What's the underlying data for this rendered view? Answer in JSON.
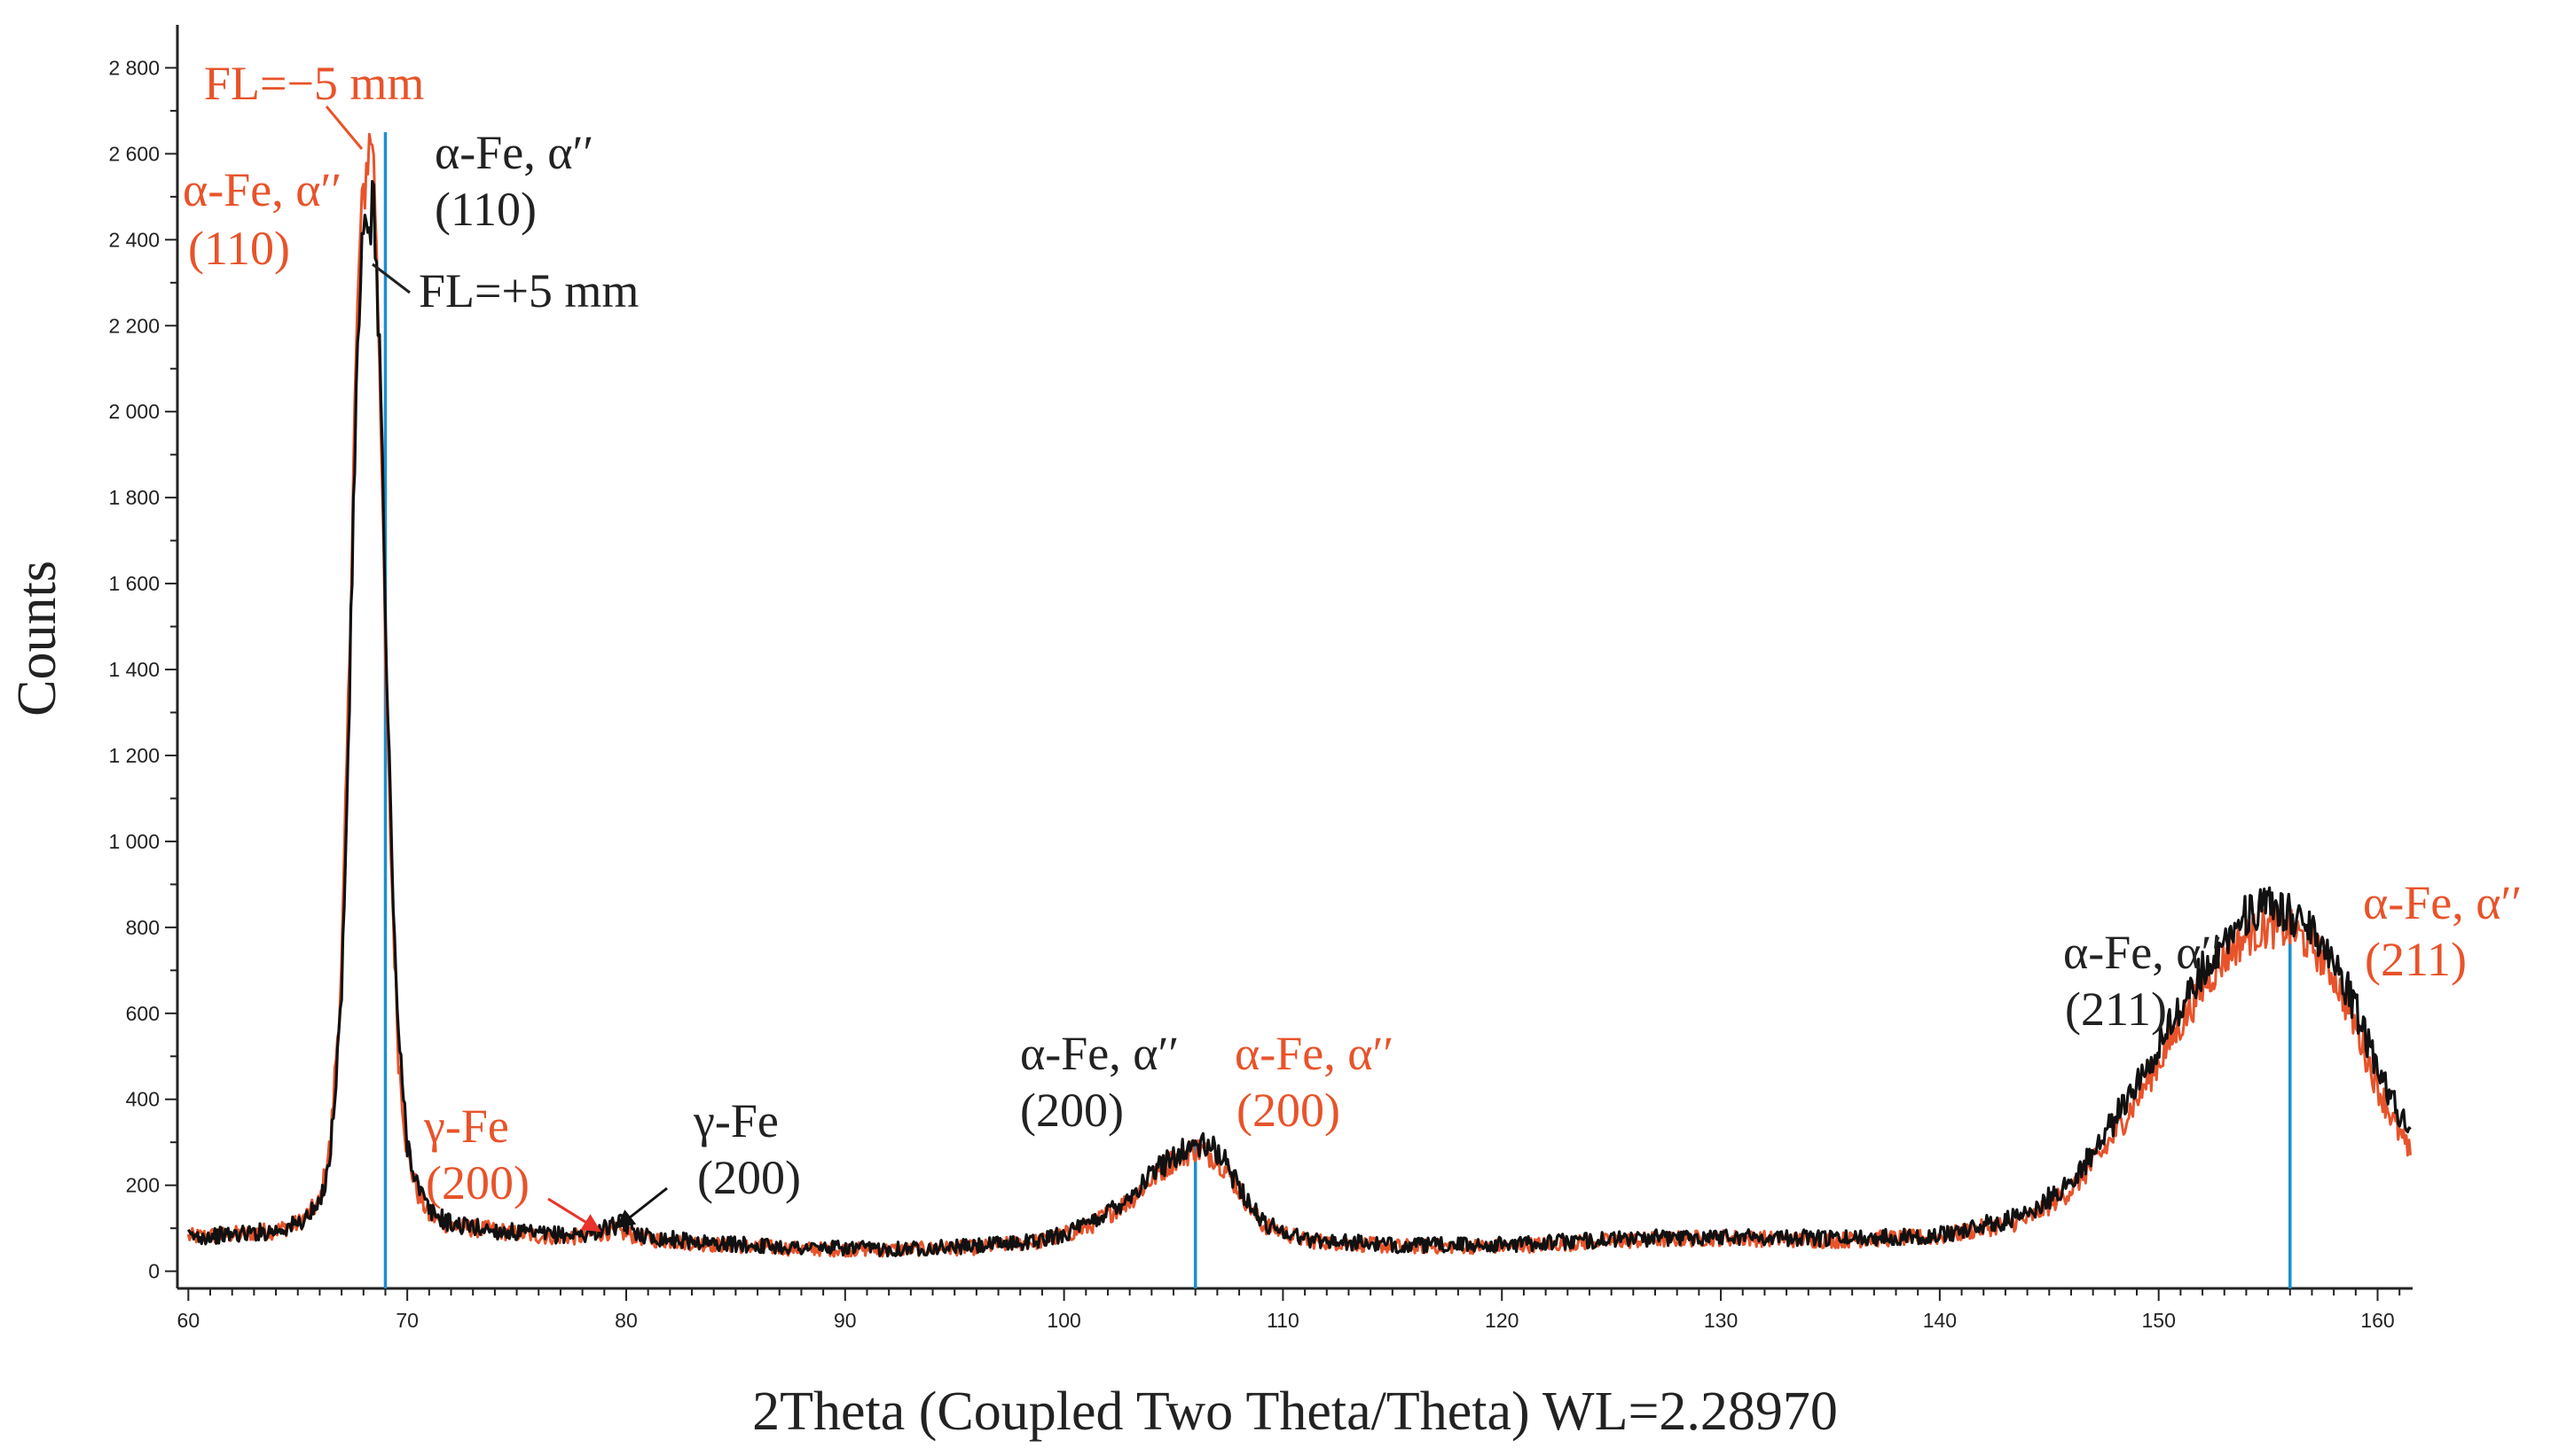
{
  "chart_data": {
    "type": "line",
    "title": "",
    "xlabel": "2Theta (Coupled Two Theta/Theta) WL=2.28970",
    "ylabel": "Counts",
    "xlim": [
      59.5,
      161.6
    ],
    "ylim": [
      -40,
      2900
    ],
    "x_ticks": [
      60,
      70,
      80,
      90,
      100,
      110,
      120,
      130,
      140,
      150,
      160
    ],
    "y_ticks": [
      0,
      200,
      400,
      600,
      800,
      1000,
      1200,
      1400,
      1600,
      1800,
      2000,
      2200,
      2400,
      2600,
      2800
    ],
    "y_tick_labels": [
      "0",
      "200",
      "400",
      "600",
      "800",
      "1 000",
      "1 200",
      "1 400",
      "1 600",
      "1 800",
      "2 000",
      "2 200",
      "2 400",
      "2 600",
      "2 800"
    ],
    "grid": false,
    "legend": "none",
    "series": [
      {
        "color": "#e8532a",
        "x": [
          60,
          62,
          64,
          65,
          66,
          66.5,
          67,
          67.3,
          67.6,
          67.8,
          68.0,
          68.2,
          68.4,
          68.6,
          68.8,
          69.0,
          69.3,
          69.6,
          70.0,
          70.5,
          71,
          72,
          74,
          76,
          78,
          79.4,
          81,
          84,
          88,
          92,
          96,
          99,
          101,
          103,
          104,
          105,
          106,
          107,
          108,
          109,
          111,
          115,
          120,
          125,
          130,
          135,
          140,
          144,
          146,
          147.5,
          149,
          150.5,
          152,
          153,
          154,
          155,
          156,
          157,
          158,
          159,
          160,
          161,
          161.5
        ],
        "y": [
          80,
          85,
          95,
          110,
          160,
          300,
          700,
          1300,
          2000,
          2350,
          2500,
          2600,
          2650,
          2400,
          2000,
          1400,
          900,
          500,
          270,
          180,
          130,
          105,
          95,
          82,
          80,
          95,
          75,
          62,
          52,
          50,
          55,
          70,
          100,
          165,
          215,
          260,
          285,
          265,
          190,
          110,
          72,
          58,
          58,
          70,
          78,
          72,
          80,
          120,
          190,
          280,
          400,
          530,
          660,
          730,
          780,
          800,
          795,
          760,
          690,
          570,
          430,
          320,
          270
        ]
      },
      {
        "color": "#111111",
        "x": [
          60,
          62,
          64,
          65,
          66,
          66.5,
          67,
          67.3,
          67.6,
          67.8,
          68.0,
          68.2,
          68.4,
          68.6,
          68.8,
          69.0,
          69.3,
          69.6,
          70.0,
          70.5,
          71,
          72,
          74,
          76,
          78,
          79.8,
          81,
          84,
          88,
          92,
          96,
          99,
          101,
          103,
          104,
          105,
          106,
          107,
          108,
          109,
          111,
          115,
          120,
          125,
          130,
          135,
          140,
          144,
          146,
          147.5,
          149,
          150.5,
          152,
          153,
          154,
          155,
          156,
          157,
          158,
          159,
          160,
          161,
          161.5
        ],
        "y": [
          80,
          85,
          95,
          110,
          150,
          280,
          640,
          1200,
          1900,
          2250,
          2420,
          2360,
          2500,
          2350,
          2050,
          1500,
          950,
          540,
          300,
          195,
          140,
          110,
          95,
          85,
          85,
          110,
          80,
          65,
          55,
          52,
          58,
          72,
          105,
          175,
          225,
          270,
          295,
          280,
          200,
          115,
          75,
          60,
          62,
          74,
          82,
          76,
          84,
          130,
          210,
          310,
          440,
          570,
          700,
          770,
          830,
          845,
          830,
          800,
          730,
          610,
          470,
          360,
          330
        ]
      }
    ],
    "reference_lines": {
      "color": "#1a8fd1",
      "x": [
        69.0,
        106.0,
        156.0
      ],
      "top": [
        2650,
        300,
        850
      ]
    },
    "annotations": [
      {
        "id": "fl-minus",
        "text": "FL=−5 mm",
        "color": "#e8532a"
      },
      {
        "id": "red-110-a",
        "text": "α-Fe, α′′",
        "color": "#e8532a"
      },
      {
        "id": "red-110-b",
        "text": "(110)",
        "color": "#e8532a"
      },
      {
        "id": "blk-110-a",
        "text": "α-Fe, α′′",
        "color": "#222222"
      },
      {
        "id": "blk-110-b",
        "text": "(110)",
        "color": "#222222"
      },
      {
        "id": "fl-plus",
        "text": "FL=+5 mm",
        "color": "#222222"
      },
      {
        "id": "red-gfe-a",
        "text": "γ-Fe",
        "color": "#e8532a"
      },
      {
        "id": "red-gfe-b",
        "text": "(200)",
        "color": "#e8532a"
      },
      {
        "id": "blk-gfe-a",
        "text": "γ-Fe",
        "color": "#222222"
      },
      {
        "id": "blk-gfe-b",
        "text": "(200)",
        "color": "#222222"
      },
      {
        "id": "blk-200-a",
        "text": "α-Fe, α′′",
        "color": "#222222"
      },
      {
        "id": "blk-200-b",
        "text": "(200)",
        "color": "#222222"
      },
      {
        "id": "red-200-a",
        "text": "α-Fe, α′′",
        "color": "#e8532a"
      },
      {
        "id": "red-200-b",
        "text": "(200)",
        "color": "#e8532a"
      },
      {
        "id": "blk-211-a",
        "text": "α-Fe, α′′",
        "color": "#222222"
      },
      {
        "id": "blk-211-b",
        "text": "(211)",
        "color": "#222222"
      },
      {
        "id": "red-211-a",
        "text": "α-Fe, α′′",
        "color": "#e8532a"
      },
      {
        "id": "red-211-b",
        "text": "(211)",
        "color": "#e8532a"
      }
    ]
  }
}
